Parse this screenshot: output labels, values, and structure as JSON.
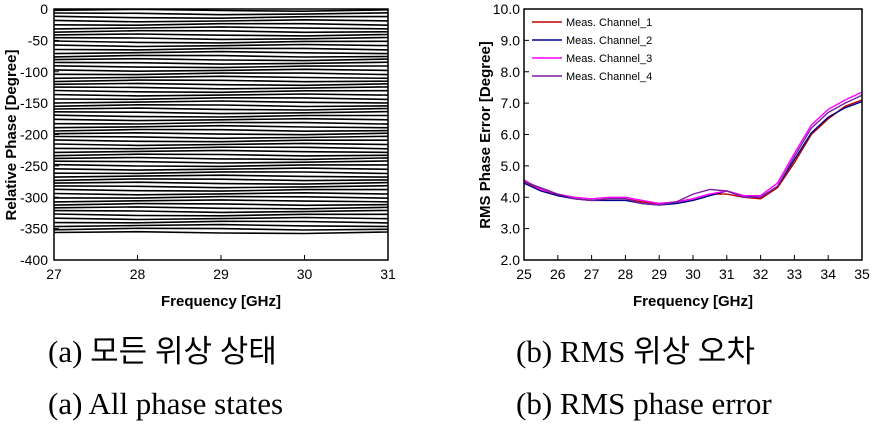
{
  "chart_data": [
    {
      "type": "line",
      "xlabel": "Frequency [GHz]",
      "ylabel": "Relative Phase [Degree]",
      "xlim": [
        27,
        31
      ],
      "ylim": [
        -400,
        0
      ],
      "xticks": [
        "27",
        "28",
        "29",
        "30",
        "31"
      ],
      "yticks": [
        "0",
        "-50",
        "-100",
        "-150",
        "-200",
        "-250",
        "-300",
        "-350",
        "-400"
      ],
      "x": [
        27,
        28,
        29,
        30,
        31
      ],
      "series_count": 64,
      "series_start": -2,
      "series_step": -5.625,
      "series_color": "#000000",
      "grid": false
    },
    {
      "type": "line",
      "xlabel": "Frequency [GHz]",
      "ylabel": "RMS Phase Error [Degree]",
      "xlim": [
        25,
        35
      ],
      "ylim": [
        2.0,
        10.0
      ],
      "xticks": [
        "25",
        "26",
        "27",
        "28",
        "29",
        "30",
        "31",
        "32",
        "33",
        "34",
        "35"
      ],
      "yticks": [
        "2.0",
        "3.0",
        "4.0",
        "5.0",
        "6.0",
        "7.0",
        "8.0",
        "9.0",
        "10.0"
      ],
      "legend_position": "top-left",
      "grid": false,
      "x": [
        25,
        25.5,
        26,
        26.5,
        27,
        27.5,
        28,
        28.5,
        29,
        29.5,
        30,
        30.5,
        31,
        31.5,
        32,
        32.5,
        33,
        33.5,
        34,
        34.5,
        35
      ],
      "series": [
        {
          "name": "Meas. Channel_1",
          "color": "#c00000",
          "values": [
            4.5,
            4.25,
            4.05,
            3.95,
            3.9,
            3.95,
            3.95,
            3.85,
            3.8,
            3.85,
            3.95,
            4.1,
            4.1,
            4.0,
            3.95,
            4.3,
            5.1,
            6.0,
            6.5,
            6.9,
            7.1
          ]
        },
        {
          "name": "Meas. Channel_2",
          "color": "#00008b",
          "values": [
            4.45,
            4.2,
            4.05,
            3.95,
            3.9,
            3.9,
            3.9,
            3.8,
            3.75,
            3.8,
            3.9,
            4.05,
            4.2,
            4.05,
            4.0,
            4.35,
            5.2,
            6.05,
            6.55,
            6.85,
            7.05
          ]
        },
        {
          "name": "Meas. Channel_3",
          "color": "#ff00ff",
          "values": [
            4.55,
            4.25,
            4.1,
            4.0,
            3.95,
            4.0,
            4.0,
            3.9,
            3.8,
            3.85,
            3.95,
            4.1,
            4.2,
            4.05,
            4.05,
            4.45,
            5.4,
            6.3,
            6.8,
            7.1,
            7.35
          ]
        },
        {
          "name": "Meas. Channel_4",
          "color": "#7b1fa2",
          "values": [
            4.5,
            4.3,
            4.1,
            3.95,
            3.9,
            3.95,
            3.95,
            3.8,
            3.75,
            3.85,
            4.1,
            4.25,
            4.2,
            4.0,
            4.0,
            4.35,
            5.3,
            6.2,
            6.7,
            7.0,
            7.25
          ]
        }
      ]
    }
  ],
  "captions": {
    "left_korean": "(a)  모든  위상  상태",
    "left_english": "(a)  All  phase  states",
    "right_korean": "(b)  RMS  위상  오차",
    "right_english": "(b)  RMS  phase  error"
  }
}
